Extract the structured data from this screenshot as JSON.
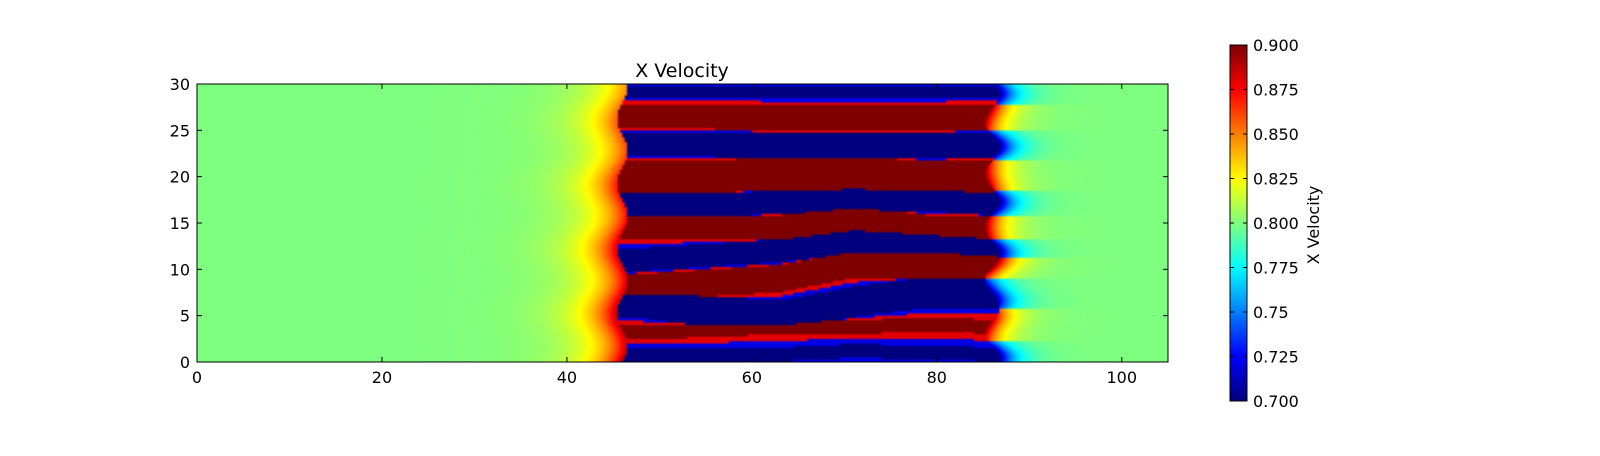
{
  "chart_data": {
    "type": "heatmap",
    "title": "X Velocity",
    "xlim": [
      0,
      105
    ],
    "ylim": [
      0,
      30
    ],
    "x_ticks": [
      {
        "value": 0,
        "label": "0"
      },
      {
        "value": 20,
        "label": "20"
      },
      {
        "value": 40,
        "label": "40"
      },
      {
        "value": 60,
        "label": "60"
      },
      {
        "value": 80,
        "label": "80"
      },
      {
        "value": 100,
        "label": "100"
      }
    ],
    "y_ticks": [
      {
        "value": 0,
        "label": "0"
      },
      {
        "value": 5,
        "label": "5"
      },
      {
        "value": 10,
        "label": "10"
      },
      {
        "value": 15,
        "label": "15"
      },
      {
        "value": 20,
        "label": "20"
      },
      {
        "value": 25,
        "label": "25"
      },
      {
        "value": 30,
        "label": "30"
      }
    ],
    "colorbar": {
      "label": "X Velocity",
      "range": [
        0.7,
        0.9
      ],
      "colormap": "jet",
      "ticks": [
        {
          "value": 0.9,
          "label": "0.900"
        },
        {
          "value": 0.875,
          "label": "0.875"
        },
        {
          "value": 0.85,
          "label": "0.850"
        },
        {
          "value": 0.825,
          "label": "0.825"
        },
        {
          "value": 0.8,
          "label": "0.800"
        },
        {
          "value": 0.775,
          "label": "0.775"
        },
        {
          "value": 0.75,
          "label": "0.75"
        },
        {
          "value": 0.725,
          "label": "0.725"
        },
        {
          "value": 0.7,
          "label": "0.700"
        }
      ]
    },
    "field": {
      "background_value": 0.8,
      "interface_x_left": 46,
      "interface_x_right": 86,
      "bands": [
        {
          "value": 0.7,
          "y_centers": [
            0.7,
            0.7,
            0.8,
            1.2,
            1.0,
            0.8
          ],
          "half_width": 0.9
        },
        {
          "value": 0.9,
          "y_centers": [
            3.3,
            3.4,
            3.8,
            3.8,
            4.0,
            3.8
          ],
          "half_width": 0.9
        },
        {
          "value": 0.7,
          "y_centers": [
            6.5,
            5.5,
            5.0,
            6.5,
            7.5,
            7.5
          ],
          "half_width": 1.8
        },
        {
          "value": 0.9,
          "y_centers": [
            8.0,
            8.5,
            9.0,
            10.5,
            10.5,
            10.5
          ],
          "half_width": 1.6
        },
        {
          "value": 0.7,
          "y_centers": [
            11.0,
            11.5,
            12.0,
            13.0,
            13.0,
            12.0
          ],
          "half_width": 1.4
        },
        {
          "value": 0.9,
          "y_centers": [
            14.5,
            14.5,
            14.5,
            15.5,
            14.5,
            14.5
          ],
          "half_width": 1.5
        },
        {
          "value": 0.7,
          "y_centers": [
            17.0,
            17.0,
            17.2,
            17.5,
            17.5,
            17.0
          ],
          "half_width": 1.4
        },
        {
          "value": 0.9,
          "y_centers": [
            20.0,
            20.0,
            20.3,
            20.3,
            20.0,
            20.0
          ],
          "half_width": 1.9
        },
        {
          "value": 0.7,
          "y_centers": [
            23.5,
            23.5,
            23.3,
            23.3,
            23.3,
            23.5
          ],
          "half_width": 1.5
        },
        {
          "value": 0.9,
          "y_centers": [
            26.5,
            26.5,
            26.3,
            26.3,
            26.3,
            26.5
          ],
          "half_width": 1.5
        },
        {
          "value": 0.7,
          "y_centers": [
            29.2,
            29.2,
            29.2,
            29.2,
            29.2,
            29.2
          ],
          "half_width": 0.8
        }
      ],
      "band_x_nodes": [
        47,
        55,
        63,
        71,
        79,
        87
      ]
    }
  }
}
